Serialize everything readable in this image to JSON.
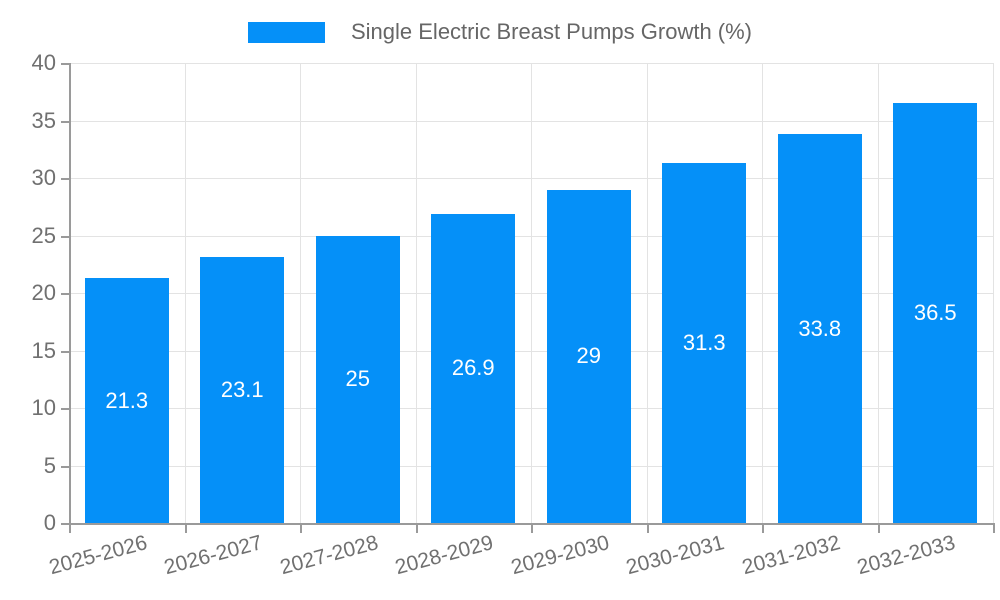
{
  "legend": {
    "label": "Single Electric Breast Pumps Growth (%)"
  },
  "colors": {
    "bar": "#0590F8",
    "grid": "#E3E3E3",
    "axis": "#9A9A9A",
    "tick_label": "#707070",
    "legend_text": "#666666",
    "bar_value_text": "#FFFFFF"
  },
  "chart_data": {
    "type": "bar",
    "title": "",
    "xlabel": "",
    "ylabel": "",
    "categories": [
      "2025-2026",
      "2026-2027",
      "2027-2028",
      "2028-2029",
      "2029-2030",
      "2030-2031",
      "2031-2032",
      "2032-2033"
    ],
    "series": [
      {
        "name": "Single Electric Breast Pumps Growth (%)",
        "values": [
          21.3,
          23.1,
          25,
          26.9,
          29,
          31.3,
          33.8,
          36.5
        ]
      }
    ],
    "value_labels": [
      "21.3",
      "23.1",
      "25",
      "26.9",
      "29",
      "31.3",
      "33.8",
      "36.5"
    ],
    "ylim": [
      0,
      40
    ],
    "yticks": [
      0,
      5,
      10,
      15,
      20,
      25,
      30,
      35,
      40
    ],
    "grid": "on",
    "legend_position": "top-center",
    "x_label_rotation_deg": -15
  }
}
